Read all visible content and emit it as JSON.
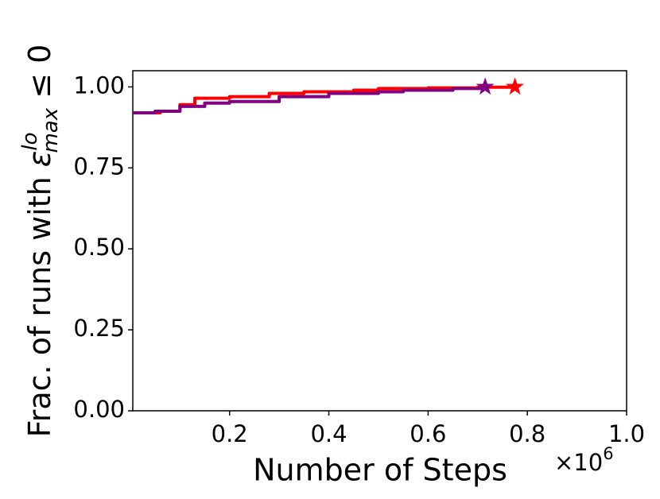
{
  "chart_data": {
    "type": "line",
    "x_label": "Number of Steps",
    "x_offset_label": {
      "base": "×10",
      "exponent": "6"
    },
    "y_label": {
      "text": "Frac. of runs with ",
      "symbol": "ε",
      "sup": "lo",
      "sub": "max",
      "suffix": " ≤ 0"
    },
    "xlim": [
      0.005,
      1.0
    ],
    "xticks": [
      0.2,
      0.4,
      0.6,
      0.8,
      {
        "value": 1.0,
        "label": "1.0"
      }
    ],
    "ylim": [
      0,
      1.05
    ],
    "yticks": [
      {
        "value": 0,
        "label": "0.00"
      },
      {
        "value": 0.25,
        "label": "0.25"
      },
      {
        "value": 0.5,
        "label": "0.50"
      },
      {
        "value": 0.75,
        "label": "0.75"
      },
      {
        "value": 1.0,
        "label": "1.00"
      }
    ],
    "end_marker": "star",
    "series": [
      {
        "color": "#ff0000",
        "x": [
          0.005,
          0.06,
          0.1,
          0.13,
          0.2,
          0.28,
          0.35,
          0.45,
          0.5,
          0.6,
          0.7,
          0.775
        ],
        "values": [
          0.92,
          0.925,
          0.945,
          0.965,
          0.97,
          0.98,
          0.985,
          0.99,
          0.995,
          0.997,
          0.999,
          1.0
        ]
      },
      {
        "color": "#800080",
        "x": [
          0.005,
          0.05,
          0.1,
          0.15,
          0.2,
          0.3,
          0.4,
          0.5,
          0.55,
          0.65,
          0.715
        ],
        "values": [
          0.92,
          0.925,
          0.94,
          0.95,
          0.955,
          0.97,
          0.98,
          0.985,
          0.99,
          0.995,
          1.0
        ]
      }
    ]
  }
}
